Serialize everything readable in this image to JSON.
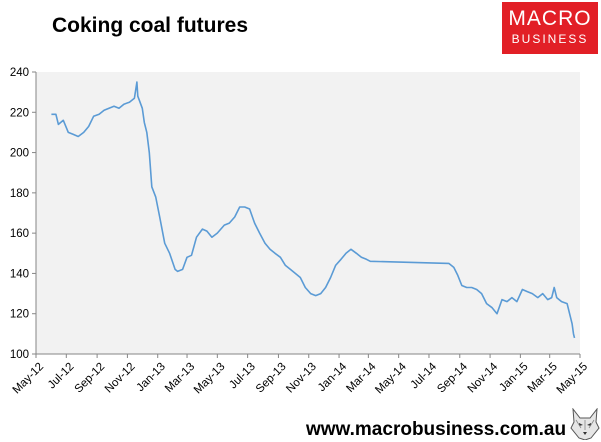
{
  "title": "Coking coal futures",
  "logo": {
    "line1": "MACRO",
    "line2": "BUSINESS"
  },
  "footer": "www.macrobusiness.com.au",
  "chart_data": {
    "type": "line",
    "title": "Coking coal futures",
    "xlabel": "",
    "ylabel": "",
    "ylim": [
      100,
      240
    ],
    "yticks": [
      100,
      120,
      140,
      160,
      180,
      200,
      220,
      240
    ],
    "xticks": [
      "May-12",
      "Jul-12",
      "Sep-12",
      "Nov-12",
      "Jan-13",
      "Mar-13",
      "May-13",
      "Jul-13",
      "Sep-13",
      "Nov-13",
      "Jan-14",
      "Mar-14",
      "May-14",
      "Jul-14",
      "Sep-14",
      "Nov-14",
      "Jan-15",
      "Mar-15",
      "May-15"
    ],
    "grid": false,
    "legend": "none",
    "colors": {
      "line": "#5b9bd5",
      "plot_bg": "#f2f2f2",
      "axis": "#868686"
    },
    "series": [
      {
        "x": [
          "2012-06-01",
          "2012-06-10",
          "2012-06-15",
          "2012-06-25",
          "2012-07-05",
          "2012-07-15",
          "2012-07-25",
          "2012-08-05",
          "2012-08-15",
          "2012-08-25",
          "2012-09-05",
          "2012-09-15",
          "2012-09-25",
          "2012-10-05",
          "2012-10-15",
          "2012-10-25",
          "2012-11-05",
          "2012-11-15",
          "2012-11-20",
          "2012-11-22",
          "2012-11-25",
          "2012-12-01",
          "2012-12-05",
          "2012-12-10",
          "2012-12-15",
          "2012-12-20",
          "2012-12-28",
          "2013-01-05",
          "2013-01-15",
          "2013-01-25",
          "2013-02-05",
          "2013-02-10",
          "2013-02-20",
          "2013-03-01",
          "2013-03-10",
          "2013-03-20",
          "2013-04-01",
          "2013-04-10",
          "2013-04-20",
          "2013-05-01",
          "2013-05-15",
          "2013-05-25",
          "2013-06-05",
          "2013-06-15",
          "2013-06-25",
          "2013-07-05",
          "2013-07-15",
          "2013-07-25",
          "2013-08-05",
          "2013-08-15",
          "2013-08-25",
          "2013-09-05",
          "2013-09-15",
          "2013-09-25",
          "2013-10-05",
          "2013-10-15",
          "2013-10-25",
          "2013-11-05",
          "2013-11-15",
          "2013-11-25",
          "2013-12-05",
          "2013-12-15",
          "2013-12-25",
          "2014-01-05",
          "2014-01-15",
          "2014-01-25",
          "2014-02-05",
          "2014-02-15",
          "2014-02-25",
          "2014-03-05",
          "2014-08-10",
          "2014-08-20",
          "2014-08-28",
          "2014-09-05",
          "2014-09-15",
          "2014-09-25",
          "2014-10-05",
          "2014-10-15",
          "2014-10-25",
          "2014-11-05",
          "2014-11-15",
          "2014-11-25",
          "2014-12-05",
          "2014-12-15",
          "2014-12-25",
          "2015-01-05",
          "2015-01-15",
          "2015-01-25",
          "2015-02-05",
          "2015-02-15",
          "2015-02-25",
          "2015-03-05",
          "2015-03-10",
          "2015-03-15",
          "2015-03-20",
          "2015-03-25",
          "2015-04-05",
          "2015-04-10",
          "2015-04-15",
          "2015-04-18",
          "2015-04-20"
        ],
        "y": [
          219,
          219,
          214,
          216,
          210,
          209,
          208,
          210,
          213,
          218,
          219,
          221,
          222,
          223,
          222,
          224,
          225,
          227,
          235,
          228,
          226,
          222,
          215,
          210,
          200,
          183,
          178,
          168,
          155,
          150,
          142,
          141,
          142,
          148,
          149,
          158,
          162,
          161,
          158,
          160,
          164,
          165,
          168,
          173,
          173,
          172,
          165,
          160,
          155,
          152,
          150,
          148,
          144,
          142,
          140,
          138,
          133,
          130,
          129,
          130,
          133,
          138,
          144,
          147,
          150,
          152,
          150,
          148,
          147,
          146,
          145,
          143,
          139,
          134,
          133,
          133,
          132,
          130,
          125,
          123,
          120,
          127,
          126,
          128,
          126,
          132,
          131,
          130,
          128,
          130,
          127,
          128,
          133,
          128,
          127,
          126,
          125,
          120,
          115,
          110,
          108
        ]
      }
    ]
  }
}
